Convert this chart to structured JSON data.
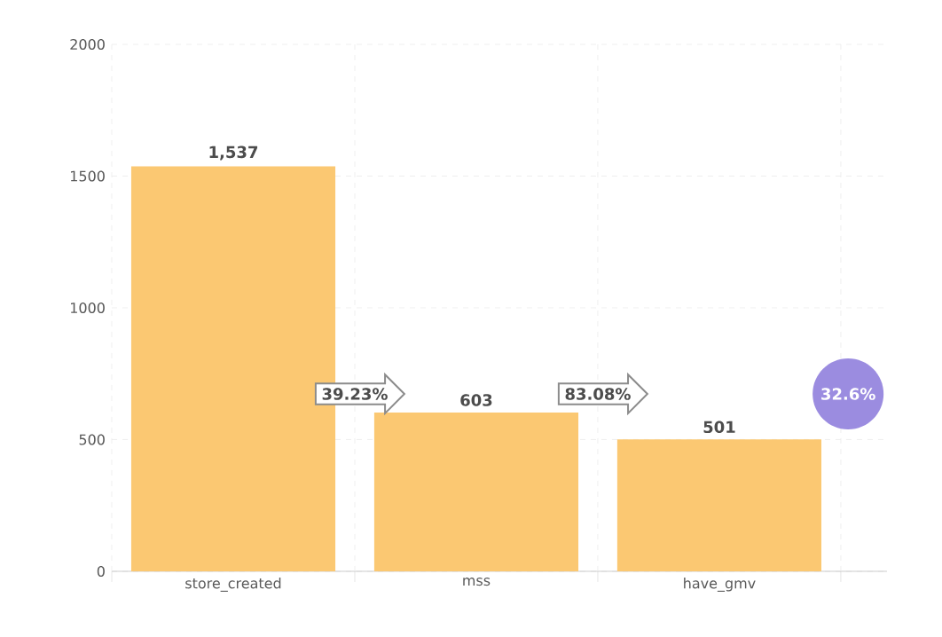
{
  "chart_data": {
    "type": "bar",
    "categories": [
      "store_created",
      "mss",
      "have_gmv"
    ],
    "values": [
      1537,
      603,
      501
    ],
    "value_labels": [
      "1,537",
      "603",
      "501"
    ],
    "color": "#fbc872",
    "ylim": [
      0,
      2000
    ],
    "yticks": [
      0,
      500,
      1000,
      1500,
      2000
    ],
    "grid": true,
    "annotations": [
      "39.23%",
      "83.08%",
      "32.6%"
    ]
  }
}
